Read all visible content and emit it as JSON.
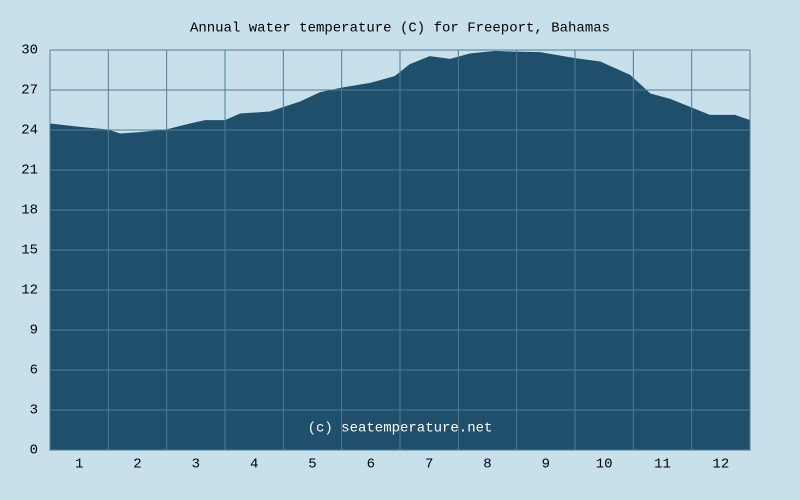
{
  "chart_data": {
    "type": "area",
    "title": "Annual water temperature (C) for Freeport, Bahamas",
    "annotation": "(c) seatemperature.net",
    "x": [
      0.5,
      1.01,
      1.49,
      1.7,
      2.04,
      2.49,
      2.9,
      3.16,
      3.5,
      3.76,
      4.27,
      4.79,
      5.13,
      5.51,
      5.99,
      6.41,
      6.67,
      7.01,
      7.36,
      7.7,
      8.13,
      8.39,
      8.9,
      9.5,
      9.93,
      10.44,
      10.79,
      11.13,
      11.47,
      11.81,
      12.24,
      12.5
    ],
    "values": [
      24.45,
      24.2,
      24.0,
      23.7,
      23.8,
      24.0,
      24.45,
      24.7,
      24.7,
      25.2,
      25.35,
      26.1,
      26.8,
      27.15,
      27.5,
      28.0,
      28.9,
      29.5,
      29.3,
      29.7,
      29.9,
      29.85,
      29.8,
      29.35,
      29.1,
      28.1,
      26.7,
      26.3,
      25.7,
      25.1,
      25.1,
      24.7
    ],
    "color": "#1f4f6a",
    "xlim": [
      0.5,
      12.5
    ],
    "xticks": [
      1,
      2,
      3,
      4,
      5,
      6,
      7,
      8,
      9,
      10,
      11,
      12
    ],
    "ylim": [
      0,
      30
    ],
    "yticks": [
      0,
      3,
      6,
      9,
      12,
      15,
      18,
      21,
      24,
      27,
      30
    ],
    "grid": true
  }
}
